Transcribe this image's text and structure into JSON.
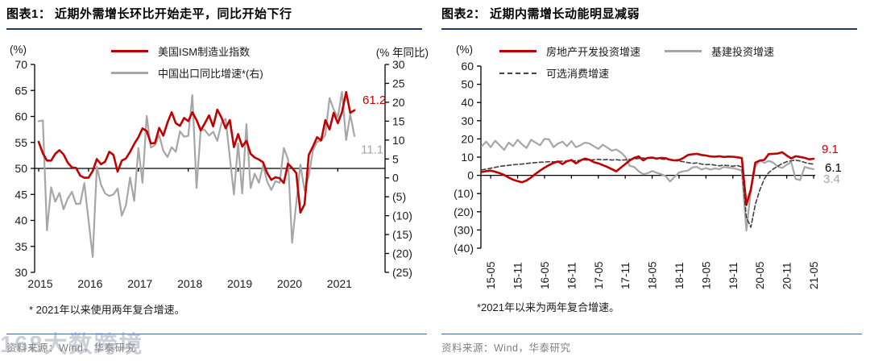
{
  "watermark": {
    "text": "168大数跨境"
  },
  "chart_data": [
    {
      "id": "figure-1",
      "type": "line",
      "title": "图表1：  近期外需增长环比开始走平，同比开始下行",
      "x": {
        "unit": "month",
        "start": "2015-01",
        "end": "2021-05",
        "tick_labels": [
          "2015",
          "2016",
          "2017",
          "2018",
          "2019",
          "2020",
          "2021"
        ]
      },
      "left_axis": {
        "label": "(%)",
        "min": 30,
        "max": 70,
        "cross_value": 50,
        "tick_labels": [
          "70",
          "65",
          "60",
          "55",
          "50",
          "45",
          "40",
          "35",
          "30"
        ]
      },
      "right_axis": {
        "label": "(% 年同比)",
        "min": -25,
        "max": 30,
        "tick_labels": [
          "30",
          "25",
          "20",
          "15",
          "10",
          "5",
          "0",
          "(5)",
          "(10)",
          "(15)",
          "(20)",
          "(25)"
        ]
      },
      "series": [
        {
          "name": "美国ISM制造业指数",
          "axis": "left",
          "color": "#c00000",
          "label_color": "#c00000",
          "line_style": "solid",
          "end_label": "61.2",
          "values": [
            55.1,
            52.9,
            51.5,
            51.5,
            52.8,
            53.5,
            52.7,
            51.1,
            50.2,
            50.1,
            48.6,
            48.2,
            48.2,
            49.5,
            51.8,
            50.8,
            51.3,
            53.2,
            52.6,
            49.4,
            51.5,
            51.9,
            53.2,
            54.7,
            56.0,
            57.7,
            57.2,
            54.8,
            54.9,
            57.8,
            56.3,
            58.8,
            60.8,
            58.7,
            58.2,
            59.7,
            59.1,
            60.8,
            59.3,
            57.3,
            58.7,
            60.2,
            58.1,
            61.3,
            59.8,
            57.7,
            59.3,
            54.1,
            56.6,
            54.2,
            55.3,
            52.8,
            52.1,
            51.7,
            51.2,
            49.1,
            47.8,
            48.3,
            48.1,
            47.2,
            50.9,
            50.1,
            49.1,
            41.5,
            43.1,
            52.6,
            54.2,
            56.0,
            55.4,
            59.3,
            57.5,
            60.7,
            58.7,
            60.8,
            64.7,
            60.7,
            61.2
          ]
        },
        {
          "name": "中国出口同比增速*(右)",
          "axis": "right",
          "color": "#a6a6a6",
          "label_color": "#a6a6a6",
          "line_style": "solid",
          "end_label": "11.1",
          "values": [
            15.0,
            15.2,
            -13.9,
            -2.5,
            -6.3,
            -4.0,
            -8.3,
            -5.5,
            -3.7,
            -6.9,
            -6.8,
            -1.4,
            -11.2,
            -20.9,
            3.0,
            -1.8,
            -4.1,
            -4.8,
            -4.4,
            -2.8,
            -10.0,
            -7.3,
            0.1,
            -6.1,
            7.9,
            -1.3,
            16.4,
            8.0,
            8.7,
            11.3,
            7.2,
            5.5,
            8.1,
            6.9,
            12.3,
            10.9,
            11.1,
            21.9,
            -2.7,
            12.9,
            12.6,
            11.2,
            12.2,
            9.8,
            14.5,
            15.6,
            5.4,
            -4.4,
            9.1,
            -4.1,
            14.2,
            -2.7,
            1.1,
            -1.3,
            3.3,
            -1.0,
            -3.2,
            -0.9,
            -1.3,
            7.9,
            5.0,
            -17.2,
            -6.6,
            3.5,
            -3.3,
            0.5,
            7.2,
            9.5,
            9.9,
            11.4,
            21.1,
            18.1,
            16.0,
            22.8,
            10.0,
            16.8,
            11.1
          ]
        }
      ],
      "footnote": "* 2021年以来使用两年复合增速。",
      "source": "资料来源：Wind，华泰研究"
    },
    {
      "id": "figure-2",
      "type": "line",
      "title": "图表2：  近期内需增长动能明显减弱",
      "x": {
        "unit": "month",
        "start": "2015-03",
        "end": "2021-05",
        "tick_labels": [
          "15-05",
          "15-11",
          "16-05",
          "16-11",
          "17-05",
          "17-11",
          "18-05",
          "18-11",
          "19-05",
          "19-11",
          "20-05",
          "20-11",
          "21-05"
        ]
      },
      "left_axis": {
        "label": "(%)",
        "min": -40,
        "max": 60,
        "cross_value": 0,
        "tick_labels": [
          "60",
          "50",
          "40",
          "30",
          "20",
          "10",
          "0",
          "(10)",
          "(20)",
          "(30)",
          "(40)"
        ]
      },
      "series": [
        {
          "name": "房地产开发投资增速",
          "axis": "left",
          "color": "#c00000",
          "label_color": "#c00000",
          "line_style": "solid",
          "end_label": "9.1",
          "values": [
            1.8,
            2.3,
            2.6,
            2.0,
            1.2,
            0.2,
            -1.2,
            -2.4,
            -3.2,
            -3.8,
            -2.8,
            -1.2,
            0.8,
            2.6,
            4.2,
            5.6,
            6.8,
            7.6,
            6.2,
            7.8,
            8.4,
            6.6,
            8.2,
            9.2,
            8.6,
            7.2,
            6.6,
            5.6,
            4.6,
            3.4,
            2.2,
            4.2,
            6.2,
            8.2,
            9.6,
            10.4,
            8.2,
            9.6,
            9.8,
            9.2,
            9.6,
            9.4,
            8.6,
            8.2,
            8.4,
            9.6,
            11.2,
            11.6,
            11.8,
            11.2,
            10.9,
            10.4,
            10.2,
            10.5,
            10.1,
            10.3,
            10.2,
            9.9,
            9.5,
            -16.3,
            -7.7,
            7.0,
            8.1,
            8.5,
            11.7,
            11.8,
            12.0,
            12.7,
            10.9,
            9.3,
            10.5,
            10.1,
            9.6,
            8.8,
            9.1
          ]
        },
        {
          "name": "基建投资增速",
          "axis": "left",
          "color": "#a6a6a6",
          "label_color": "#a6a6a6",
          "line_style": "solid",
          "end_label": "3.4",
          "values": [
            16.0,
            18.5,
            15.5,
            19.0,
            16.5,
            14.0,
            18.0,
            16.0,
            19.5,
            17.0,
            15.0,
            19.5,
            18.0,
            16.5,
            20.0,
            19.8,
            15.5,
            17.5,
            18.5,
            16.0,
            18.8,
            15.5,
            16.5,
            18.0,
            17.5,
            16.0,
            14.5,
            16.8,
            15.2,
            13.6,
            14.2,
            12.6,
            10.2,
            5.2,
            4.6,
            2.2,
            0.6,
            1.2,
            2.4,
            1.4,
            0.6,
            -0.4,
            -3.4,
            -0.8,
            1.6,
            2.2,
            2.6,
            4.4,
            4.6,
            3.2,
            4.0,
            3.2,
            3.8,
            3.4,
            4.6,
            4.2,
            4.0,
            3.4,
            2.6,
            -30.3,
            -8.2,
            4.8,
            8.3,
            6.8,
            7.9,
            7.0,
            4.8,
            4.1,
            5.8,
            7.3,
            -2.0,
            -2.6,
            4.6,
            3.9,
            3.4
          ]
        },
        {
          "name": "可选消费增速",
          "axis": "left",
          "color": "#404040",
          "label_color": "#000000",
          "line_style": "dashed",
          "end_label": "6.1",
          "values": [
            3.0,
            3.4,
            3.9,
            4.4,
            4.9,
            5.2,
            5.5,
            5.8,
            6.0,
            6.2,
            6.5,
            6.8,
            7.0,
            7.2,
            7.3,
            7.5,
            7.4,
            7.6,
            7.8,
            7.7,
            7.9,
            8.0,
            8.2,
            8.5,
            8.3,
            8.6,
            8.8,
            8.5,
            8.7,
            8.4,
            8.6,
            8.3,
            8.5,
            8.8,
            9.0,
            9.3,
            9.5,
            9.2,
            9.6,
            9.4,
            9.0,
            8.8,
            8.5,
            8.2,
            7.8,
            7.5,
            7.0,
            6.6,
            6.8,
            6.2,
            5.9,
            6.0,
            5.6,
            5.2,
            5.6,
            5.3,
            5.0,
            5.4,
            4.6,
            -23.0,
            -28.5,
            -16.0,
            -8.0,
            -2.0,
            1.5,
            3.5,
            5.0,
            6.5,
            7.5,
            8.0,
            8.3,
            7.9,
            7.1,
            6.5,
            6.1
          ]
        }
      ],
      "footnote": "*2021年以来为两年复合增速。",
      "source": "资料来源：Wind，华泰研究"
    }
  ],
  "colors": {
    "accent_red": "#c00000",
    "series_gray": "#a6a6a6",
    "dashed_dark": "#404040",
    "title_rule": "#1f3864",
    "source_rule": "#44679f",
    "source_text": "#808080"
  }
}
